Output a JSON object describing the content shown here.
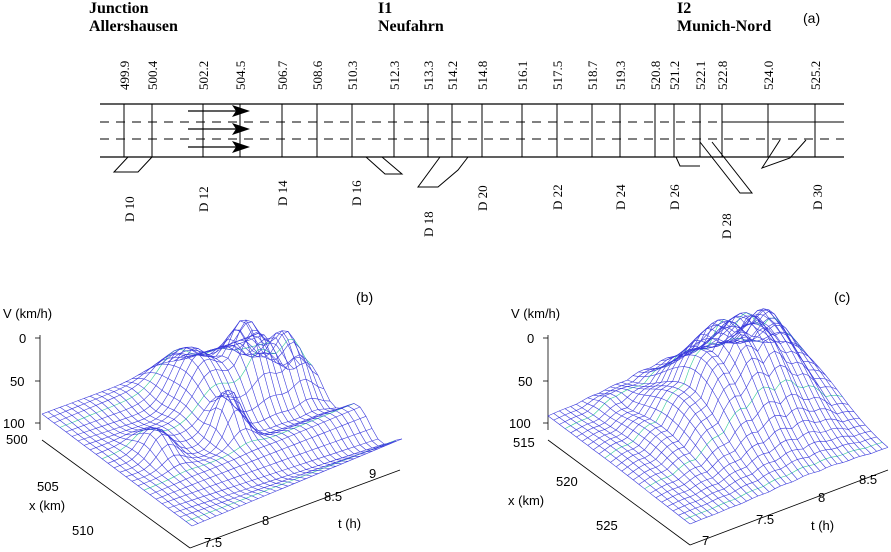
{
  "panel_a": {
    "label": "(a)",
    "junctions": [
      {
        "line1": "Junction",
        "line2": "Allershausen"
      },
      {
        "line1": "I1",
        "line2": "Neufahrn"
      },
      {
        "line1": "I2",
        "line2": "Munich-Nord"
      }
    ],
    "km_marks": [
      "499.9",
      "500.4",
      "502.2",
      "504.5",
      "506.7",
      "508.6",
      "510.3",
      "512.3",
      "513.3",
      "514.2",
      "514.8",
      "516.1",
      "517.5",
      "518.7",
      "519.3",
      "520.8",
      "521.2",
      "522.1",
      "522.8",
      "524.0",
      "525.2"
    ],
    "detectors": [
      "D 10",
      "D 12",
      "D 14",
      "D 16",
      "D 18",
      "D 20",
      "D 22",
      "D 24",
      "D 26",
      "D 28",
      "D 30"
    ]
  },
  "panel_b": {
    "label": "(b)",
    "v_axis_label": "V (km/h)",
    "v_ticks": [
      "0",
      "50",
      "100"
    ],
    "x_axis_label": "x (km)",
    "x_ticks": [
      "500",
      "505",
      "510"
    ],
    "t_axis_label": "t (h)",
    "t_ticks": [
      "7.5",
      "8",
      "8.5",
      "9"
    ],
    "mesh_color": "#3a3adc",
    "accent_color": "#33cc99"
  },
  "panel_c": {
    "label": "(c)",
    "v_axis_label": "V (km/h)",
    "v_ticks": [
      "0",
      "50",
      "100"
    ],
    "x_axis_label": "x (km)",
    "x_ticks": [
      "515",
      "520",
      "525"
    ],
    "t_axis_label": "t (h)",
    "t_ticks": [
      "7",
      "7.5",
      "8",
      "8.5"
    ],
    "mesh_color": "#3a3adc",
    "accent_color": "#33cc99"
  }
}
